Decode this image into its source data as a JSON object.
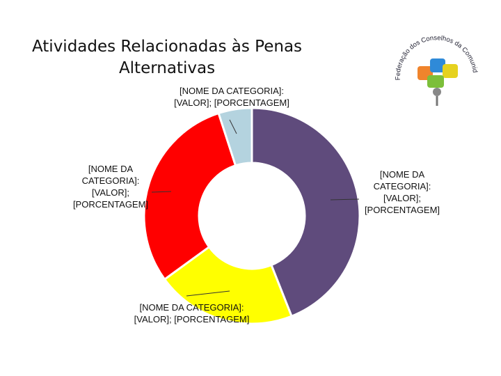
{
  "chart_data": {
    "type": "donut",
    "title": "Atividades Relacionadas às Penas Alternativas",
    "categories": [
      null,
      null,
      null,
      null
    ],
    "values": [
      44,
      21,
      30,
      5
    ],
    "value_labels": [
      "[NOME DA CATEGORIA]: [VALOR]; [PORCENTAGEM]",
      "[NOME DA CATEGORIA]: [VALOR]; [PORCENTAGEM]",
      "[NOME DA CATEGORIA]: [VALOR]; [PORCENTAGEM]",
      "[NOME DA CATEGORIA]: [VALOR]; [PORCENTAGEM]"
    ],
    "colors": [
      "#5f4b7c",
      "#ffff00",
      "#ff0000",
      "#b4d3df"
    ]
  },
  "logo_text": "Federação dos Conselhos da Comunidade do Paraná"
}
